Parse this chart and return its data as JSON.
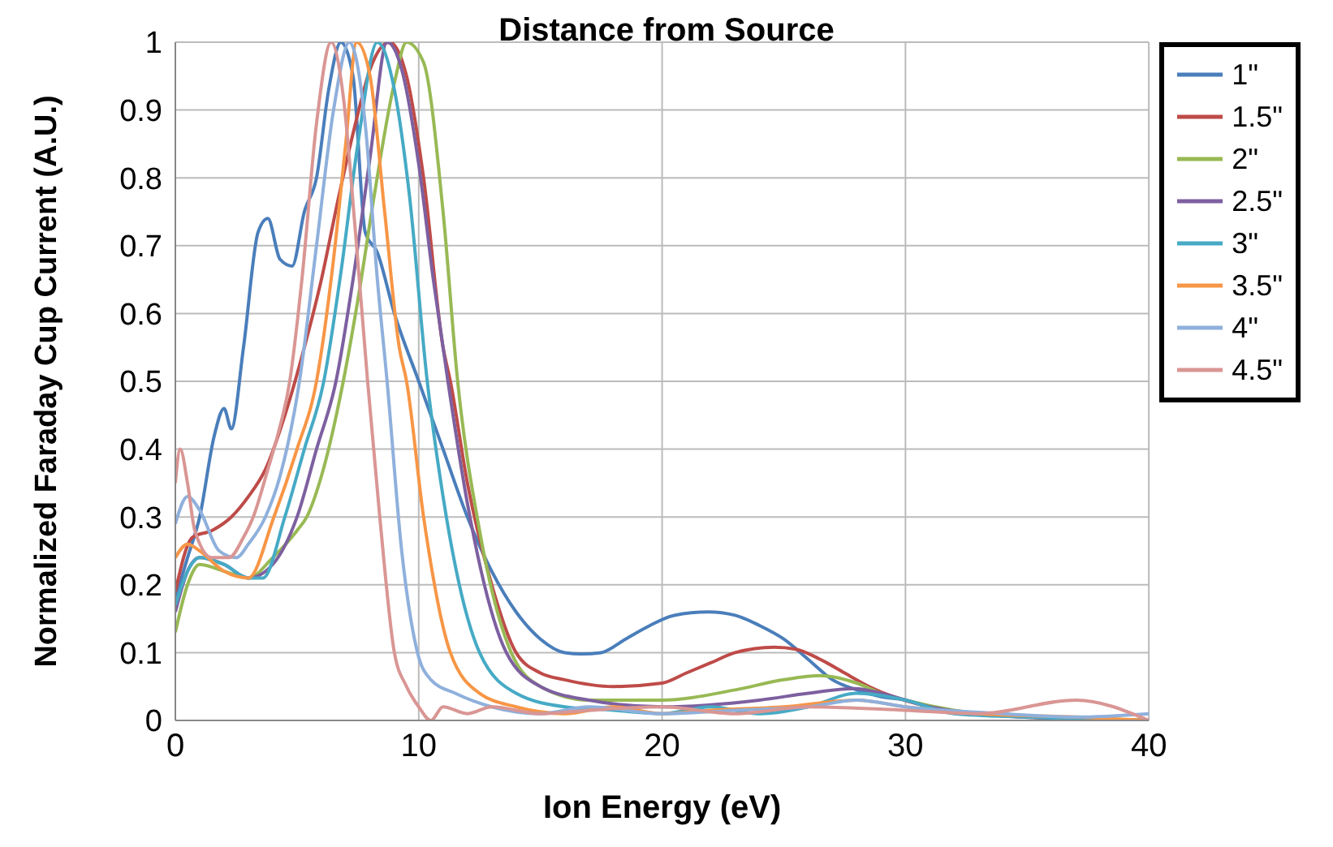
{
  "chart_data": {
    "type": "line",
    "title": "Distance from Source",
    "xlabel": "Ion Energy (eV)",
    "ylabel": "Normalized Faraday Cup Current (A.U.)",
    "xlim": [
      0,
      40
    ],
    "xticks": [
      0,
      10,
      20,
      30,
      40
    ],
    "ylim": [
      0,
      1
    ],
    "yticks": [
      0,
      0.1,
      0.2,
      0.3,
      0.4,
      0.5,
      0.6,
      0.7,
      0.8,
      0.9,
      1
    ],
    "grid": true,
    "legend": "top right",
    "marker": "none",
    "line_style": "solid",
    "series": [
      {
        "name": "1\"",
        "color": "#4a7ebb",
        "x": [
          0,
          0.5,
          1,
          1.6,
          2,
          2.3,
          2.8,
          3.4,
          3.8,
          4.3,
          4.8,
          5.3,
          5.8,
          6.3,
          6.8,
          7.3,
          7.8,
          8.3,
          9,
          10,
          11,
          12,
          13,
          14,
          15,
          16,
          16.7,
          17.5,
          18.5,
          19.5,
          20.5,
          21.9,
          23,
          24,
          25,
          26,
          27,
          28,
          29,
          30,
          31,
          33,
          35,
          37,
          40
        ],
        "values": [
          0.18,
          0.24,
          0.3,
          0.42,
          0.46,
          0.43,
          0.55,
          0.72,
          0.74,
          0.68,
          0.67,
          0.75,
          0.8,
          0.93,
          1.0,
          0.95,
          0.72,
          0.69,
          0.6,
          0.5,
          0.4,
          0.3,
          0.22,
          0.16,
          0.12,
          0.1,
          0.098,
          0.1,
          0.12,
          0.14,
          0.155,
          0.16,
          0.155,
          0.14,
          0.12,
          0.09,
          0.06,
          0.045,
          0.035,
          0.03,
          0.02,
          0.01,
          0.005,
          0.003,
          0
        ]
      },
      {
        "name": "1.5\"",
        "color": "#be4b48",
        "x": [
          0,
          0.7,
          1.5,
          2.3,
          3,
          3.7,
          4.5,
          5.3,
          6,
          6.7,
          7.4,
          8,
          8.8,
          9.5,
          10.2,
          11,
          11.3,
          12,
          13,
          14,
          15,
          16,
          18,
          20,
          21,
          22,
          23,
          24.6,
          25.5,
          26.5,
          27.5,
          28.5,
          29.5,
          31,
          33,
          35,
          38,
          40
        ],
        "values": [
          0.19,
          0.27,
          0.28,
          0.3,
          0.33,
          0.37,
          0.45,
          0.55,
          0.65,
          0.77,
          0.88,
          0.96,
          1.0,
          0.95,
          0.8,
          0.55,
          0.5,
          0.35,
          0.2,
          0.1,
          0.07,
          0.06,
          0.05,
          0.055,
          0.07,
          0.085,
          0.1,
          0.108,
          0.105,
          0.09,
          0.07,
          0.05,
          0.035,
          0.02,
          0.01,
          0.005,
          0.002,
          0
        ]
      },
      {
        "name": "2\"",
        "color": "#98b954",
        "x": [
          0,
          0.5,
          1,
          2,
          3,
          4,
          5,
          5.4,
          6,
          6.9,
          7.5,
          8.2,
          9,
          9.5,
          10.2,
          11,
          11.6,
          12.5,
          13.8,
          15,
          17,
          20,
          23,
          25,
          26.5,
          28,
          29,
          30,
          32,
          35,
          40
        ],
        "values": [
          0.13,
          0.2,
          0.23,
          0.22,
          0.21,
          0.24,
          0.28,
          0.3,
          0.36,
          0.5,
          0.62,
          0.78,
          0.94,
          1.0,
          0.97,
          0.75,
          0.5,
          0.28,
          0.1,
          0.05,
          0.03,
          0.03,
          0.045,
          0.06,
          0.066,
          0.055,
          0.04,
          0.03,
          0.015,
          0.005,
          0
        ]
      },
      {
        "name": "2.5\"",
        "color": "#7d60a0",
        "x": [
          0,
          0.5,
          1,
          2,
          3,
          4,
          5,
          5.8,
          6.6,
          7.3,
          8,
          8.7,
          9.3,
          10,
          10.6,
          11.2,
          12,
          13.6,
          15,
          17,
          20,
          24,
          26,
          27.9,
          29,
          30,
          31,
          33,
          36,
          40
        ],
        "values": [
          0.16,
          0.22,
          0.24,
          0.23,
          0.21,
          0.23,
          0.3,
          0.4,
          0.5,
          0.65,
          0.83,
          1.0,
          0.96,
          0.82,
          0.65,
          0.5,
          0.32,
          0.1,
          0.05,
          0.03,
          0.02,
          0.03,
          0.04,
          0.047,
          0.04,
          0.03,
          0.02,
          0.01,
          0.003,
          0
        ]
      },
      {
        "name": "3\"",
        "color": "#46aac5",
        "x": [
          0,
          0.5,
          1,
          2,
          3,
          3.6,
          4.5,
          5.3,
          6.1,
          6.8,
          7.5,
          8.3,
          9,
          9.6,
          10.35,
          11,
          12.5,
          14,
          16,
          18,
          20,
          22,
          24,
          26,
          28,
          30,
          32,
          35,
          40
        ],
        "values": [
          0.17,
          0.22,
          0.24,
          0.23,
          0.21,
          0.21,
          0.3,
          0.4,
          0.5,
          0.66,
          0.85,
          1.0,
          0.93,
          0.78,
          0.5,
          0.33,
          0.1,
          0.04,
          0.02,
          0.015,
          0.01,
          0.02,
          0.01,
          0.02,
          0.04,
          0.03,
          0.01,
          0.005,
          0
        ]
      },
      {
        "name": "3.5\"",
        "color": "#f79646",
        "x": [
          0,
          0.5,
          1,
          2,
          3,
          4.05,
          5,
          5.8,
          6.5,
          7,
          7.45,
          8,
          8.6,
          9.2,
          9.5,
          10.2,
          11.3,
          12.5,
          14,
          16,
          18,
          20,
          22,
          25,
          28,
          30,
          33,
          37,
          40
        ],
        "values": [
          0.24,
          0.26,
          0.25,
          0.22,
          0.21,
          0.3,
          0.4,
          0.5,
          0.68,
          0.85,
          1.0,
          0.95,
          0.75,
          0.55,
          0.5,
          0.3,
          0.1,
          0.04,
          0.02,
          0.01,
          0.02,
          0.01,
          0.015,
          0.02,
          0.03,
          0.02,
          0.01,
          0.005,
          0
        ]
      },
      {
        "name": "4\"",
        "color": "#8fb0dc",
        "x": [
          0,
          0.5,
          1,
          1.8,
          2.5,
          3,
          3.7,
          4.3,
          5.1,
          5.8,
          6.5,
          7.15,
          7.8,
          8.3,
          8.7,
          9.3,
          9.95,
          10.5,
          11.5,
          13,
          15,
          17,
          20,
          23,
          26,
          28,
          30,
          34,
          37,
          40
        ],
        "values": [
          0.29,
          0.33,
          0.31,
          0.25,
          0.24,
          0.26,
          0.3,
          0.36,
          0.5,
          0.7,
          0.9,
          1.0,
          0.88,
          0.65,
          0.5,
          0.25,
          0.1,
          0.06,
          0.04,
          0.02,
          0.01,
          0.02,
          0.01,
          0.015,
          0.02,
          0.03,
          0.02,
          0.01,
          0.005,
          0.01
        ]
      },
      {
        "name": "4.5\"",
        "color": "#d99694",
        "x": [
          0,
          0.2,
          0.5,
          0.8,
          1.5,
          2.2,
          2.8,
          3.2,
          3.8,
          4.2,
          4.7,
          5.2,
          5.8,
          6.4,
          6.9,
          7.4,
          7.9,
          8.4,
          9,
          9.5,
          10,
          10.5,
          11,
          12,
          13,
          15,
          17,
          20,
          23,
          26,
          30,
          33,
          37,
          40
        ],
        "values": [
          0.35,
          0.4,
          0.35,
          0.28,
          0.24,
          0.24,
          0.27,
          0.3,
          0.37,
          0.42,
          0.5,
          0.65,
          0.88,
          1.0,
          0.92,
          0.72,
          0.5,
          0.3,
          0.1,
          0.05,
          0.02,
          0,
          0.02,
          0.01,
          0.02,
          0.01,
          0.015,
          0.02,
          0.01,
          0.02,
          0.015,
          0.01,
          0.03,
          0
        ]
      }
    ]
  }
}
